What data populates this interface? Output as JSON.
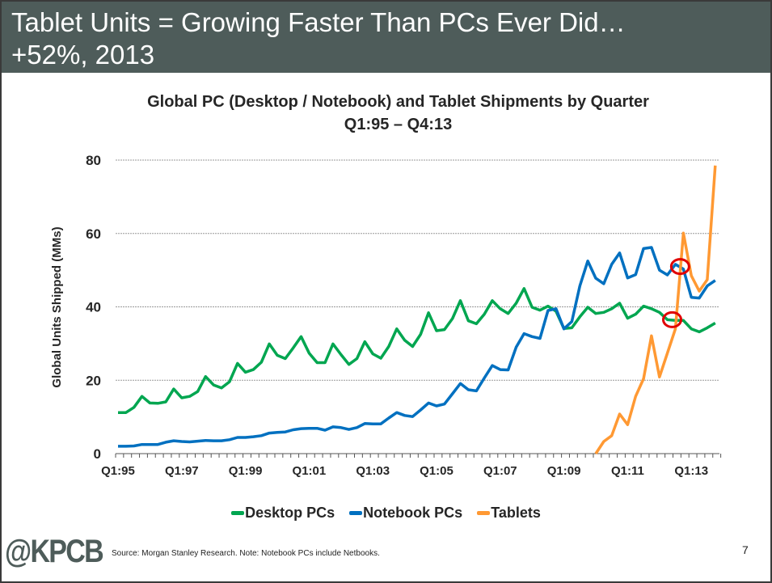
{
  "slide": {
    "title_line1": "Tablet Units = Growing Faster Than PCs Ever Did…",
    "title_line2": "+52%, 2013",
    "logo": "@KPCB",
    "source": "Source: Morgan Stanley Research. Note: Notebook PCs include Netbooks.",
    "page_number": "7",
    "header_color": "#4e5c5a"
  },
  "chart_data": {
    "type": "line",
    "title": "Global PC (Desktop / Notebook) and Tablet Shipments by Quarter",
    "subtitle": "Q1:95 – Q4:13",
    "ylabel": "Global Units Shipped (MMs)",
    "xlabel": "",
    "ylim": [
      0,
      80
    ],
    "yticks": [
      "0",
      "20",
      "40",
      "60",
      "80"
    ],
    "x_tick_labels": [
      "Q1:95",
      "Q1:97",
      "Q1:99",
      "Q1:01",
      "Q1:03",
      "Q1:05",
      "Q1:07",
      "Q1:09",
      "Q1:11",
      "Q1:13"
    ],
    "x_range": [
      "Q1:95",
      "Q4:13"
    ],
    "grid": "horizontal dashed",
    "legend_position": "bottom",
    "series": [
      {
        "name": "Desktop PCs",
        "color": "#00a650",
        "values": [
          11.2,
          11.2,
          12.6,
          15.6,
          13.8,
          13.7,
          14.1,
          17.6,
          15.2,
          15.6,
          16.9,
          21,
          18.7,
          17.9,
          19.6,
          24.6,
          22.2,
          22.9,
          24.9,
          29.9,
          26.8,
          25.9,
          28.8,
          31.9,
          27.4,
          24.8,
          24.8,
          29.9,
          27,
          24.3,
          25.9,
          30.5,
          27.2,
          26,
          29.2,
          34,
          30.9,
          29.2,
          32.5,
          38.4,
          33.5,
          33.8,
          36.8,
          41.7,
          36.2,
          35.4,
          38,
          41.7,
          39.5,
          38.2,
          41,
          45,
          39.9,
          39.1,
          40.2,
          38.8,
          34.1,
          34.3,
          37.3,
          39.9,
          38.2,
          38.5,
          39.5,
          41,
          36.9,
          38,
          40.2,
          39.5,
          38.5,
          36.5,
          36.3,
          36.3,
          34,
          33.2,
          34.3,
          35.6
        ]
      },
      {
        "name": "Notebook PCs",
        "color": "#0070c0",
        "values": [
          2,
          2,
          2.1,
          2.5,
          2.5,
          2.5,
          3.1,
          3.5,
          3.3,
          3.2,
          3.4,
          3.6,
          3.5,
          3.5,
          3.8,
          4.4,
          4.4,
          4.6,
          4.9,
          5.6,
          5.8,
          5.9,
          6.5,
          6.8,
          6.9,
          6.9,
          6.4,
          7.3,
          7.1,
          6.6,
          7.1,
          8.2,
          8.1,
          8.1,
          9.7,
          11.2,
          10.4,
          10.1,
          11.9,
          13.8,
          13,
          13.5,
          16.3,
          19.1,
          17.4,
          17.1,
          20.6,
          24,
          22.9,
          22.8,
          29,
          32.7,
          31.9,
          31.4,
          39,
          39.5,
          34,
          36,
          45.7,
          52.5,
          47.8,
          46.3,
          51.6,
          54.7,
          47.9,
          48.8,
          55.9,
          56.2,
          50,
          48.7,
          51.6,
          50.3,
          42.6,
          42.4,
          45.7,
          47.2
        ]
      },
      {
        "name": "Tablets",
        "color": "#ff9933",
        "values": [
          null,
          null,
          null,
          null,
          null,
          null,
          null,
          null,
          null,
          null,
          null,
          null,
          null,
          null,
          null,
          null,
          null,
          null,
          null,
          null,
          null,
          null,
          null,
          null,
          null,
          null,
          null,
          null,
          null,
          null,
          null,
          null,
          null,
          null,
          null,
          null,
          null,
          null,
          null,
          null,
          null,
          null,
          null,
          null,
          null,
          null,
          null,
          null,
          null,
          null,
          null,
          null,
          null,
          null,
          null,
          null,
          null,
          null,
          null,
          null,
          0,
          3.3,
          4.9,
          10.8,
          7.9,
          15.6,
          20.4,
          32.1,
          20.9,
          27.4,
          34,
          60.1,
          48.5,
          44.3,
          47.4,
          78.5
        ]
      }
    ],
    "annotations": [
      {
        "type": "circle",
        "color": "#e00000",
        "series": "Notebook PCs",
        "x": "Q4:12",
        "y": 51
      },
      {
        "type": "circle",
        "color": "#e00000",
        "series": "Desktop PCs",
        "x": "Q3:12",
        "y": 36.5
      }
    ]
  }
}
